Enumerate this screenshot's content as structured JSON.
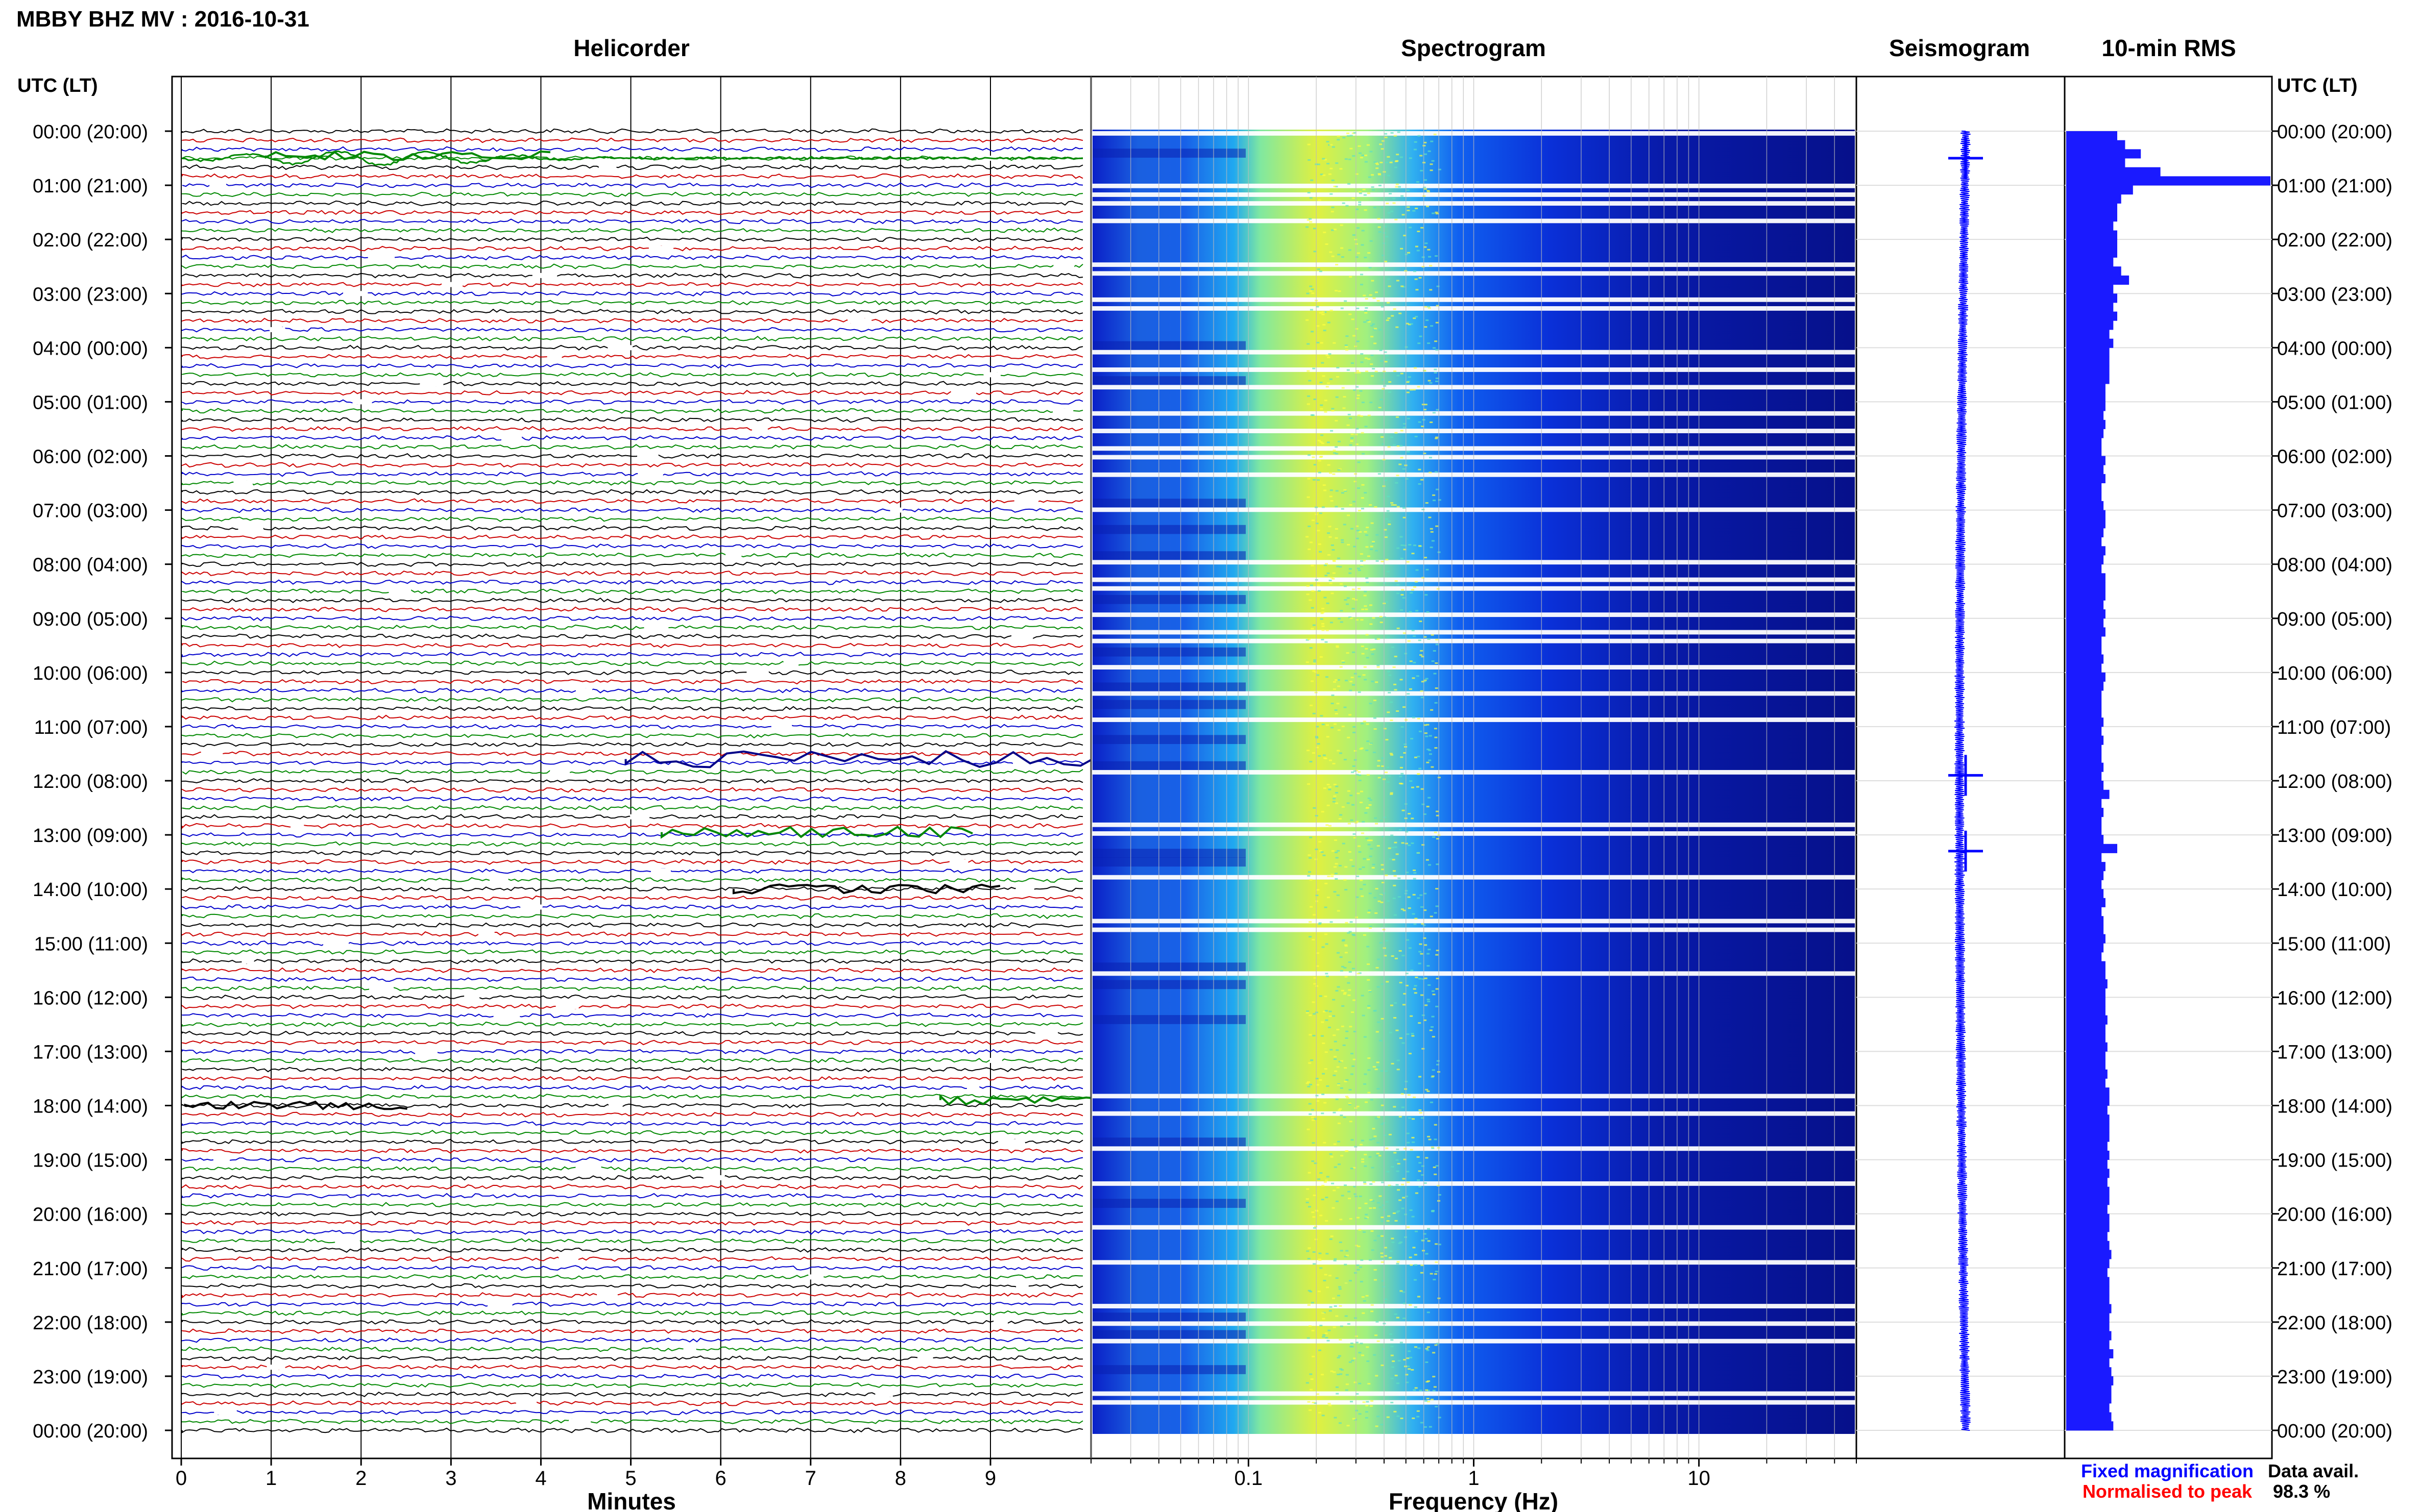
{
  "header": {
    "title": "MBBY BHZ MV : 2016-10-31"
  },
  "panels": {
    "helicorder": "Helicorder",
    "spectrogram": "Spectrogram",
    "seismogram": "Seismogram",
    "rms": "10-min RMS"
  },
  "axis": {
    "utc_left": "UTC (LT)",
    "utc_right": "UTC (LT)",
    "minutes_label": "Minutes",
    "frequency_label": "Frequency (Hz)"
  },
  "legend": {
    "fixed": "Fixed magnification",
    "normalised": "Normalised to peak",
    "fixed_color": "#0000ff",
    "normalised_color": "#ff0000"
  },
  "availability": {
    "label": "Data avail.",
    "value": "98.3 %"
  },
  "chart_data": [
    {
      "type": "line",
      "title": "Helicorder",
      "xlabel": "Minutes",
      "ylabel": "UTC (LT)",
      "xlim": [
        0,
        10
      ],
      "x_ticks": [
        "0",
        "1",
        "2",
        "3",
        "4",
        "5",
        "6",
        "7",
        "8",
        "9"
      ],
      "time_labels": [
        "00:00 (20:00)",
        "01:00 (21:00)",
        "02:00 (22:00)",
        "03:00 (23:00)",
        "04:00 (00:00)",
        "05:00 (01:00)",
        "06:00 (02:00)",
        "07:00 (03:00)",
        "08:00 (04:00)",
        "09:00 (05:00)",
        "10:00 (06:00)",
        "11:00 (07:00)",
        "12:00 (08:00)",
        "13:00 (09:00)",
        "14:00 (10:00)",
        "15:00 (11:00)",
        "16:00 (12:00)",
        "17:00 (13:00)",
        "18:00 (14:00)",
        "19:00 (15:00)",
        "20:00 (16:00)",
        "21:00 (17:00)",
        "22:00 (18:00)",
        "23:00 (19:00)",
        "00:00 (20:00)"
      ],
      "trace_colors": [
        "#000000",
        "#cc0000",
        "#0000cc",
        "#008800"
      ],
      "grid": true,
      "events": [
        {
          "hour": 0.45,
          "minute": 1.0,
          "color": "#008800",
          "amp": 3.2
        },
        {
          "hour": 11.6,
          "minute": 5.0,
          "color": "#000088",
          "amp": 5.5
        },
        {
          "hour": 12.95,
          "minute": 5.4,
          "color": "#008800",
          "amp": 3.5
        },
        {
          "hour": 14.0,
          "minute": 6.2,
          "color": "#000000",
          "amp": 3.0
        },
        {
          "hour": 18.0,
          "minute": 0.1,
          "color": "#000000",
          "amp": 2.5
        },
        {
          "hour": 17.9,
          "minute": 8.5,
          "color": "#008800",
          "amp": 2.8
        }
      ]
    },
    {
      "type": "heatmap",
      "title": "Spectrogram",
      "xlabel": "Frequency (Hz)",
      "xscale": "log",
      "xlim": [
        0.02,
        50
      ],
      "x_ticks": [
        "0.1",
        "1",
        "10"
      ],
      "peak_frequency_hz": 0.25,
      "colormap": [
        "#00008b",
        "#0000ff",
        "#0066ff",
        "#00ccff",
        "#66ffcc",
        "#ccff66",
        "#ffff00"
      ],
      "grid": true
    },
    {
      "type": "line",
      "title": "Seismogram",
      "events_hours": [
        0.5,
        11.9,
        13.3
      ]
    },
    {
      "type": "bar",
      "title": "10-min RMS",
      "orientation": "horizontal",
      "interval_minutes": 10,
      "count": 144,
      "values": [
        1.3,
        1.5,
        1.9,
        1.5,
        2.4,
        5.2,
        1.7,
        1.4,
        1.3,
        1.3,
        1.2,
        1.3,
        1.3,
        1.3,
        1.2,
        1.4,
        1.6,
        1.2,
        1.3,
        1.2,
        1.3,
        1.2,
        1.1,
        1.2,
        1.1,
        1.1,
        1.1,
        1.1,
        1.0,
        1.0,
        1.0,
        0.95,
        1.0,
        0.95,
        0.9,
        0.9,
        1.0,
        0.95,
        1.0,
        0.9,
        0.9,
        0.95,
        1.0,
        1.0,
        0.95,
        0.9,
        1.0,
        0.95,
        0.9,
        1.0,
        1.0,
        1.0,
        0.95,
        1.0,
        0.95,
        1.0,
        0.9,
        0.9,
        0.95,
        0.9,
        1.0,
        0.95,
        0.9,
        0.9,
        0.9,
        0.95,
        0.9,
        0.95,
        0.9,
        0.9,
        0.95,
        0.9,
        0.95,
        1.1,
        0.9,
        0.95,
        0.9,
        0.9,
        0.95,
        1.3,
        0.9,
        1.0,
        0.95,
        0.9,
        0.95,
        1.0,
        0.9,
        0.95,
        0.95,
        1.0,
        0.95,
        0.9,
        1.0,
        1.0,
        1.05,
        1.0,
        1.0,
        1.0,
        1.05,
        1.0,
        1.0,
        1.05,
        1.0,
        1.0,
        1.05,
        1.0,
        1.1,
        1.1,
        1.05,
        1.1,
        1.1,
        1.1,
        1.05,
        1.1,
        1.05,
        1.1,
        1.05,
        1.1,
        1.1,
        1.05,
        1.1,
        1.1,
        1.05,
        1.1,
        1.15,
        1.1,
        1.05,
        1.1,
        1.1,
        1.1,
        1.15,
        1.1,
        1.1,
        1.15,
        1.1,
        1.2,
        1.1,
        1.15,
        1.2,
        1.15,
        1.15,
        1.1,
        1.15,
        1.2
      ],
      "xlim": [
        0,
        5.2
      ]
    }
  ]
}
